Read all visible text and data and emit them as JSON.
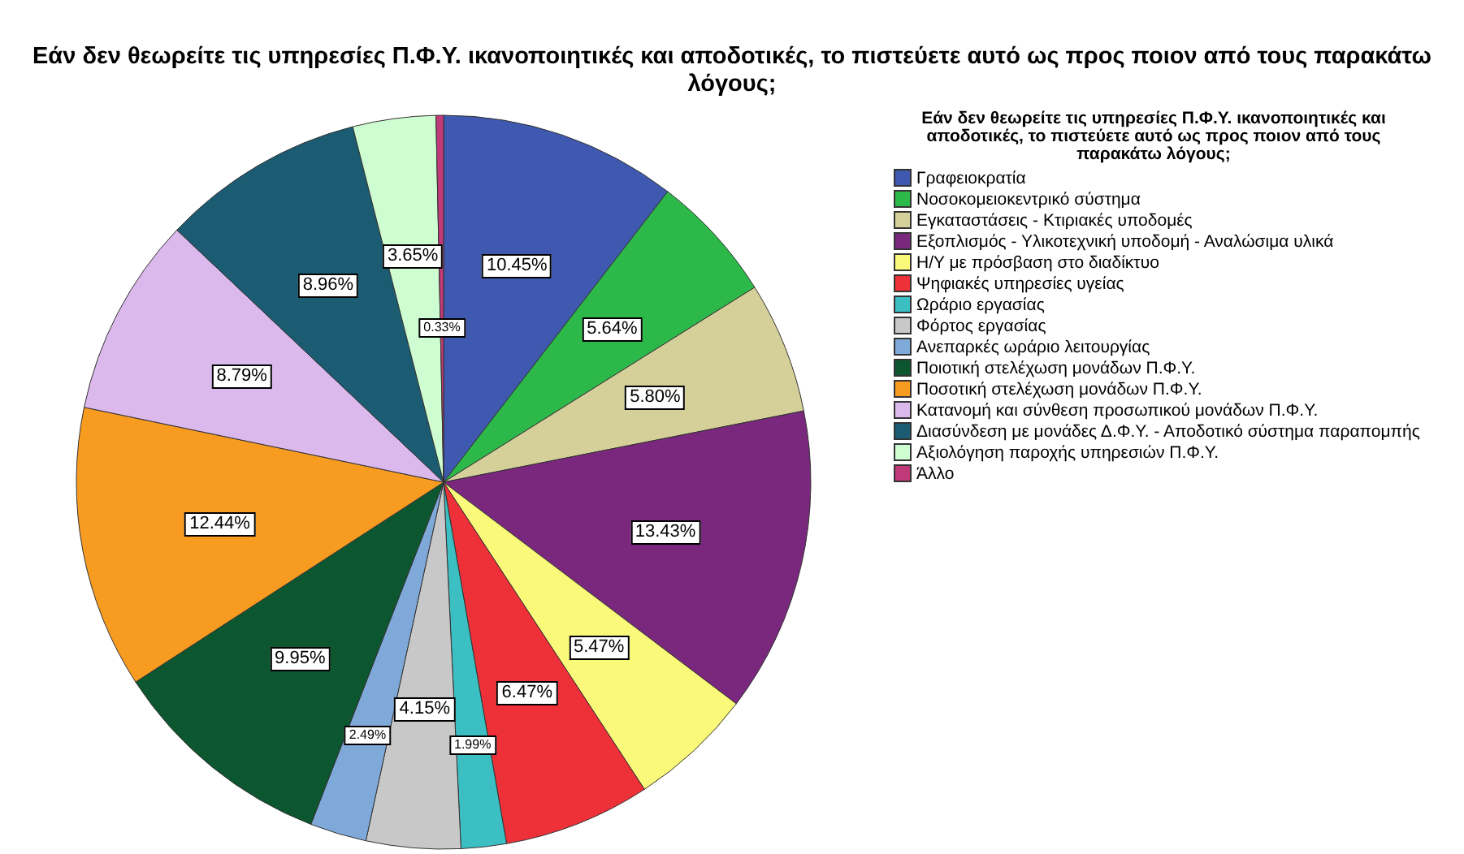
{
  "chart_data": {
    "type": "pie",
    "title": "Εάν δεν θεωρείτε τις υπηρεσίες Π.Φ.Υ. ικανοποιητικές και αποδοτικές, το πιστεύετε αυτό ως προς ποιον από τους παρακάτω λόγους;",
    "legend_title": "Εάν δεν θεωρείτε τις υπηρεσίες Π.Φ.Υ. ικανοποιητικές και αποδοτικές, το πιστεύετε αυτό ως προς ποιον από τους παρακάτω λόγους;",
    "legend": "right",
    "categories": [
      "Γραφειοκρατία",
      "Νοσοκομειοκεντρικό σύστημα",
      "Εγκαταστάσεις - Κτιριακές υποδομές",
      "Εξοπλισμός - Υλικοτεχνική υποδομή - Αναλώσιμα υλικά",
      "Η/Υ με πρόσβαση στο διαδίκτυο",
      "Ψηφιακές υπηρεσίες υγείας",
      "Ωράριο εργασίας",
      "Φόρτος εργασίας",
      "Ανεπαρκές ωράριο λειτουργίας",
      "Ποιοτική στελέχωση μονάδων Π.Φ.Υ.",
      "Ποσοτική στελέχωση μονάδων Π.Φ.Υ.",
      "Κατανομή και σύνθεση προσωπικού μονάδων Π.Φ.Υ.",
      "Διασύνδεση με μονάδες Δ.Φ.Υ. - Αποδοτικό σύστημα παραπομπής",
      "Αξιολόγηση παροχής υπηρεσιών Π.Φ.Υ.",
      "Άλλο"
    ],
    "values": [
      10.45,
      5.64,
      5.8,
      13.43,
      5.47,
      6.47,
      1.99,
      4.15,
      2.49,
      9.95,
      12.44,
      8.79,
      8.96,
      3.65,
      0.33
    ],
    "value_labels": [
      "10.45%",
      "5.64%",
      "5.80%",
      "13.43%",
      "5.47%",
      "6.47%",
      "1.99%",
      "4.15%",
      "2.49%",
      "9.95%",
      "12.44%",
      "8.79%",
      "8.96%",
      "3.65%",
      "0.33%"
    ],
    "colors": [
      "#3f58b0",
      "#2db84a",
      "#d5cf99",
      "#7a287e",
      "#fbf97a",
      "#ee3038",
      "#3cbfc3",
      "#c8c8c8",
      "#7fa9d9",
      "#0c5630",
      "#f89b21",
      "#dcb9ec",
      "#1b5c73",
      "#cdfdd0",
      "#c03a7a"
    ]
  }
}
